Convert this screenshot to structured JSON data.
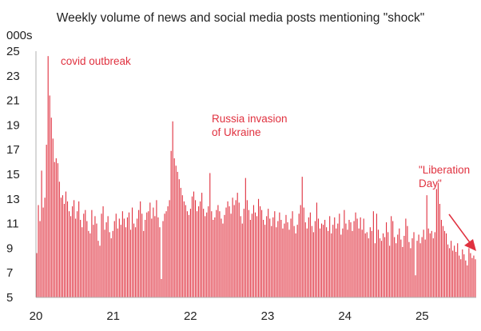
{
  "chart_data": {
    "type": "bar",
    "title": "Weekly volume of news and social media posts mentioning \"shock\"",
    "ylabel": "000s",
    "xlabel": "",
    "ylim": [
      5,
      25
    ],
    "y_ticks": [
      5,
      7,
      9,
      11,
      13,
      15,
      17,
      19,
      21,
      23,
      25
    ],
    "x_ticks": [
      "20",
      "21",
      "22",
      "23",
      "24",
      "25"
    ],
    "xlim_years": [
      2020,
      2025.7
    ],
    "bar_color": "#e0313f",
    "series": [
      {
        "values": [
          8.6,
          12.5,
          11.2,
          15.3,
          12.3,
          13.1,
          17.4,
          24.6,
          21.4,
          19.6,
          17.9,
          16.0,
          16.3,
          15.9,
          14.4,
          13.1,
          13.3,
          12.6,
          13.6,
          12.8,
          12.0,
          11.6,
          12.4,
          12.9,
          11.4,
          12.0,
          12.8,
          11.3,
          10.7,
          11.8,
          12.1,
          11.2,
          10.4,
          10.2,
          12.1,
          10.9,
          11.6,
          11.0,
          9.6,
          9.2,
          11.8,
          12.4,
          10.5,
          11.1,
          11.6,
          10.3,
          9.8,
          10.4,
          11.2,
          11.8,
          10.6,
          11.4,
          10.9,
          12.0,
          11.4,
          10.7,
          11.5,
          11.9,
          10.5,
          12.3,
          11.0,
          10.7,
          11.4,
          12.1,
          12.8,
          11.8,
          10.4,
          11.3,
          11.9,
          12.0,
          12.7,
          11.4,
          12.3,
          11.6,
          12.9,
          11.5,
          10.7,
          6.5,
          11.2,
          11.8,
          12.0,
          12.4,
          12.9,
          16.9,
          19.3,
          16.3,
          15.7,
          15.2,
          14.6,
          13.9,
          13.3,
          12.8,
          12.5,
          12.0,
          11.7,
          12.2,
          13.2,
          13.6,
          12.9,
          12.0,
          12.4,
          12.8,
          13.5,
          12.2,
          11.6,
          11.9,
          12.4,
          15.1,
          12.0,
          11.3,
          11.5,
          12.1,
          12.5,
          12.0,
          11.4,
          11.0,
          11.7,
          12.3,
          12.8,
          12.4,
          11.8,
          13.1,
          12.5,
          12.9,
          13.5,
          12.7,
          11.6,
          11.0,
          12.2,
          14.7,
          12.9,
          12.1,
          11.3,
          11.8,
          12.5,
          11.9,
          11.6,
          13.0,
          12.4,
          12.1,
          11.3,
          10.9,
          11.6,
          12.2,
          11.4,
          10.8,
          11.5,
          12.0,
          10.7,
          11.2,
          11.9,
          11.3,
          10.6,
          11.0,
          11.7,
          11.1,
          10.5,
          11.4,
          12.0,
          10.8,
          10.2,
          10.9,
          11.8,
          12.5,
          14.8,
          12.3,
          11.1,
          10.6,
          11.5,
          11.9,
          10.8,
          10.3,
          11.2,
          12.7,
          11.4,
          10.6,
          11.0,
          10.9,
          11.3,
          10.7,
          10.4,
          11.6,
          10.2,
          10.9,
          11.5,
          10.6,
          11.0,
          11.8,
          10.1,
          10.6,
          12.1,
          11.0,
          10.5,
          11.3,
          11.1,
          10.4,
          11.2,
          11.9,
          11.4,
          10.6,
          11.5,
          10.5,
          11.4,
          10.2,
          10.3,
          9.8,
          10.7,
          10.4,
          12.0,
          9.4,
          11.8,
          10.5,
          9.8,
          9.6,
          10.2,
          9.9,
          11.1,
          10.3,
          9.2,
          11.6,
          11.2,
          9.9,
          9.4,
          10.1,
          10.6,
          9.7,
          9.1,
          10.0,
          11.4,
          10.8,
          9.5,
          9.0,
          9.8,
          10.3,
          6.8,
          9.6,
          10.1,
          9.4,
          9.9,
          10.5,
          9.7,
          13.3,
          10.6,
          10.2,
          10.4,
          9.8,
          10.3,
          13.8,
          14.3,
          12.6,
          11.3,
          10.8,
          10.4,
          10.2,
          9.3,
          9.0,
          9.6,
          8.8,
          9.2,
          8.7,
          9.4,
          8.4,
          8.1,
          8.9,
          8.5,
          8.0,
          7.6,
          9.0,
          8.6,
          8.2,
          8.4,
          8.1
        ]
      }
    ],
    "annotations": [
      {
        "lines": [
          "covid outbreak"
        ],
        "at_year": 2020.21
      },
      {
        "lines": [
          "Russia invasion",
          "of Ukraine"
        ],
        "at_year": 2022.15
      },
      {
        "lines": [
          "\"Liberation",
          "Day\""
        ],
        "at_year": 2025.25
      }
    ]
  }
}
